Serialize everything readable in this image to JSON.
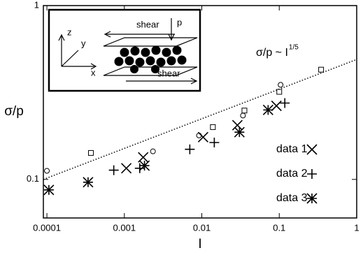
{
  "chart_data": {
    "type": "scatter",
    "log_x": true,
    "log_y": true,
    "x_label": "I",
    "y_label": "σ/p",
    "xlim": [
      9e-05,
      1
    ],
    "xticks": [
      0.0001,
      0.001,
      0.01,
      0.1,
      1
    ],
    "ylim": [
      0.06,
      1
    ],
    "yticks": [
      0.1,
      1
    ],
    "legend": "lower right",
    "fit": {
      "x": [
        9e-05,
        1
      ],
      "y": [
        0.1,
        0.49
      ],
      "label": "σ/p ~ I",
      "label_exponent": "1/5"
    },
    "series": [
      {
        "marker": "circle",
        "color": "#000",
        "x": [
          0.0001,
          0.00234,
          0.0092,
          0.034,
          0.104
        ],
        "values": [
          0.112,
          0.145,
          0.179,
          0.233,
          0.35
        ]
      },
      {
        "marker": "square",
        "color": "#000",
        "x": [
          0.00037,
          0.0139,
          0.0355,
          0.1,
          0.347
        ],
        "values": [
          0.142,
          0.2,
          0.249,
          0.319,
          0.428
        ]
      },
      {
        "name": "data 1",
        "marker": "x",
        "color": "#000",
        "x": [
          0.00106,
          0.00175,
          0.0104,
          0.0288,
          0.092
        ],
        "values": [
          0.116,
          0.134,
          0.175,
          0.205,
          0.265
        ]
      },
      {
        "name": "data 2",
        "marker": "plus",
        "color": "#000",
        "x": [
          0.00073,
          0.00158,
          0.007,
          0.0145,
          0.118
        ],
        "values": [
          0.113,
          0.116,
          0.149,
          0.163,
          0.275
        ]
      },
      {
        "name": "data 3",
        "marker": "asterisk",
        "color": "#000",
        "x": [
          0.000106,
          0.00034,
          0.00182,
          0.0306,
          0.0718
        ],
        "values": [
          0.087,
          0.0964,
          0.12,
          0.187,
          0.251
        ]
      }
    ]
  },
  "inset": {
    "shear_top": "shear",
    "pressure": "p",
    "shear_bottom": "shear",
    "axis_z": "z",
    "axis_y": "y",
    "axis_x": "x"
  }
}
